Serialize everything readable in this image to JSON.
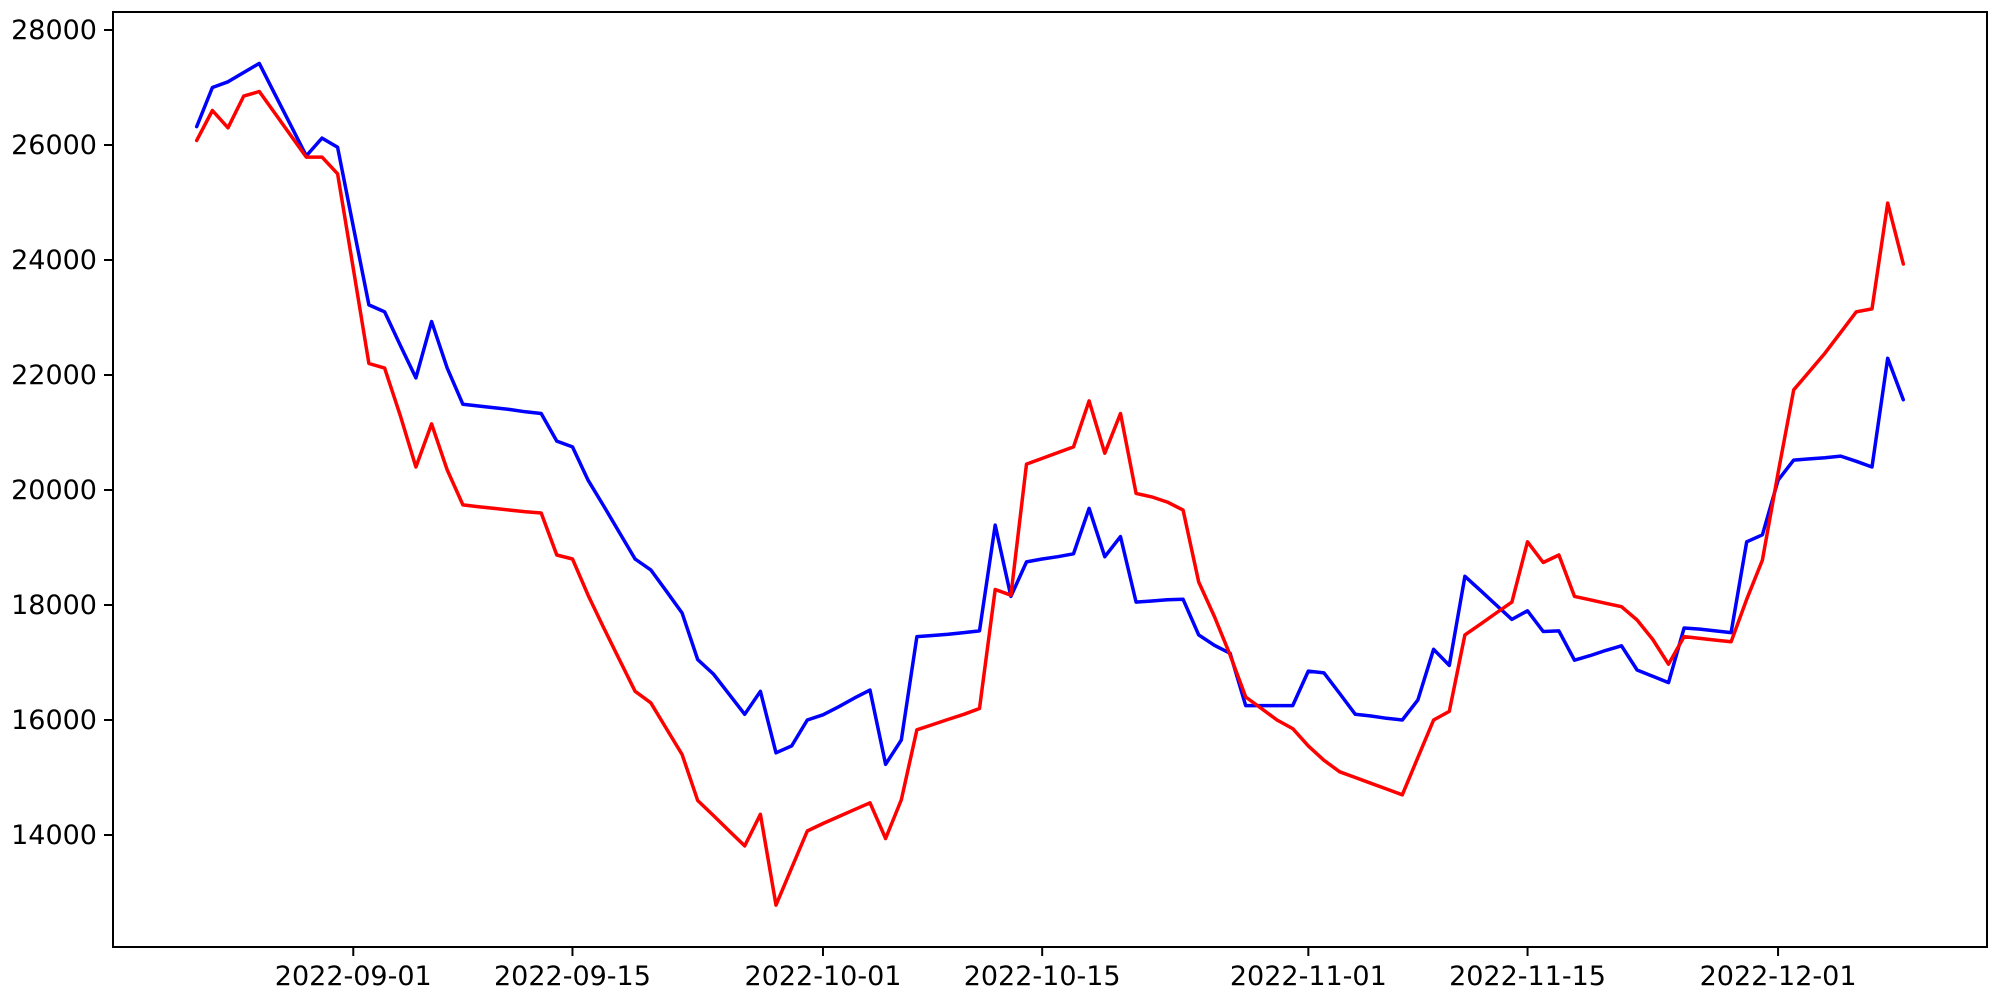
{
  "figure": {
    "background_color": "#ffffff",
    "spine_color": "#000000",
    "tick_label_color": "#000000"
  },
  "chart_data": {
    "type": "line",
    "title": "",
    "xlabel": "",
    "ylabel": "",
    "grid": false,
    "legend": "none",
    "x_start_date": "2022-08-22",
    "x_end_date": "2022-12-09",
    "x_frequency": "daily",
    "x_tick_labels": [
      "2022-09-01",
      "2022-09-15",
      "2022-10-01",
      "2022-10-15",
      "2022-11-01",
      "2022-11-15",
      "2022-12-01"
    ],
    "y_tick_values": [
      14000,
      16000,
      18000,
      20000,
      22000,
      24000,
      26000,
      28000
    ],
    "ylim": [
      12050,
      28250
    ],
    "series": [
      {
        "name": "blue-line",
        "color": "#0000ff",
        "values": [
          26320,
          27000,
          27100,
          27260,
          27420,
          26880,
          26350,
          25810,
          26120,
          25960,
          24580,
          23220,
          23100,
          22520,
          21950,
          22930,
          22120,
          21490,
          21460,
          21430,
          21400,
          21360,
          21330,
          20850,
          20750,
          20170,
          19720,
          19260,
          18800,
          18610,
          18240,
          17860,
          17050,
          16800,
          16450,
          16100,
          16500,
          15430,
          15550,
          16000,
          16090,
          16230,
          16380,
          16520,
          15230,
          15650,
          17450,
          17470,
          17490,
          17520,
          17550,
          19390,
          18150,
          18750,
          18800,
          18840,
          18890,
          19680,
          18840,
          19190,
          18050,
          18070,
          18090,
          18100,
          17480,
          17300,
          17160,
          16250,
          16250,
          16250,
          16250,
          16850,
          16820,
          16460,
          16100,
          16070,
          16030,
          16000,
          16350,
          17230,
          16950,
          18500,
          18250,
          18000,
          17750,
          17900,
          17540,
          17550,
          17040,
          17120,
          17210,
          17290,
          16870,
          16760,
          16650,
          17600,
          17580,
          17550,
          17520,
          19100,
          19220,
          20170,
          20520,
          20540,
          20560,
          20590,
          20500,
          20400,
          22290,
          21570
        ]
      },
      {
        "name": "red-line",
        "color": "#ff0000",
        "values": [
          26080,
          26600,
          26300,
          26850,
          26930,
          26550,
          26170,
          25790,
          25790,
          25500,
          23850,
          22200,
          22120,
          21300,
          20400,
          21150,
          20350,
          19740,
          19710,
          19680,
          19650,
          19620,
          19600,
          18870,
          18800,
          18170,
          17600,
          17050,
          16500,
          16300,
          15850,
          15400,
          14600,
          14340,
          14075,
          13810,
          14360,
          12780,
          13430,
          14070,
          14200,
          14320,
          14440,
          14560,
          13940,
          14610,
          15830,
          15920,
          16010,
          16100,
          16200,
          18270,
          18170,
          20450,
          20550,
          20650,
          20750,
          21550,
          20640,
          21330,
          19940,
          19880,
          19790,
          19650,
          18400,
          17800,
          17130,
          16400,
          16200,
          16000,
          15850,
          15550,
          15300,
          15100,
          15000,
          14900,
          14800,
          14700,
          15350,
          16000,
          16150,
          17480,
          17670,
          17860,
          18050,
          19100,
          18740,
          18870,
          18150,
          18090,
          18030,
          17970,
          17740,
          17400,
          16970,
          17450,
          17420,
          17390,
          17360,
          18100,
          18780,
          20300,
          21740,
          22060,
          22380,
          22740,
          23100,
          23150,
          24990,
          23930
        ]
      }
    ]
  }
}
